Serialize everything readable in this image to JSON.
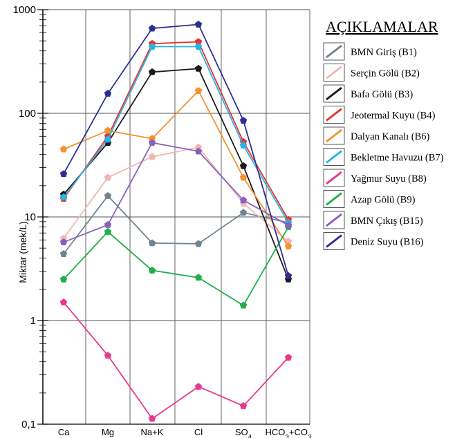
{
  "chart_data": {
    "type": "line",
    "y_scale": "log",
    "ylabel": "Miktar (mek/L)",
    "ylim": [
      0.1,
      1000
    ],
    "y_ticks": [
      "1000",
      "100",
      "10",
      "1",
      "0,1"
    ],
    "categories": [
      "Ca",
      "Mg",
      "Na+K",
      "Cl",
      "SO4",
      "HCO3+CO3"
    ],
    "legend_title": "AÇIKLAMALAR",
    "legend_placement": "right",
    "grid": true,
    "series": [
      {
        "name": "BMN Giriş (B1)",
        "color": "#6e8591",
        "values": [
          4.4,
          16,
          5.6,
          5.5,
          11,
          8.8
        ]
      },
      {
        "name": "Serçin Gölü (B2)",
        "color": "#f2b6b0",
        "values": [
          6.2,
          24,
          38,
          47,
          13.5,
          5.8
        ]
      },
      {
        "name": "Bafa Gölü (B3)",
        "color": "#1a1a1a",
        "values": [
          16.5,
          52,
          250,
          270,
          31,
          2.5
        ]
      },
      {
        "name": "Jeotermal Kuyu (B4)",
        "color": "#e8332a",
        "values": [
          15,
          60,
          470,
          490,
          53,
          9.4
        ]
      },
      {
        "name": "Dalyan Kanalı (B6)",
        "color": "#f39230",
        "values": [
          45,
          68,
          57,
          165,
          24,
          5.2
        ]
      },
      {
        "name": "Bekletme Havuzu (B7)",
        "color": "#27b3e6",
        "values": [
          15.5,
          56,
          440,
          440,
          49,
          8.8
        ]
      },
      {
        "name": "Yağmur Suyu (B8)",
        "color": "#e8388f",
        "values": [
          1.5,
          0.46,
          0.113,
          0.23,
          0.15,
          0.44
        ]
      },
      {
        "name": "Azap Gölü (B9)",
        "color": "#1fae4a",
        "values": [
          2.5,
          7.2,
          3.05,
          2.6,
          1.4,
          8.0
        ]
      },
      {
        "name": "BMN Çıkış (B15)",
        "color": "#8a5fc0",
        "values": [
          5.7,
          8.4,
          52,
          43,
          14.5,
          8.3
        ]
      },
      {
        "name": "Deniz Suyu (B16)",
        "color": "#2e2f93",
        "values": [
          26,
          155,
          660,
          720,
          85,
          2.7
        ]
      }
    ]
  }
}
